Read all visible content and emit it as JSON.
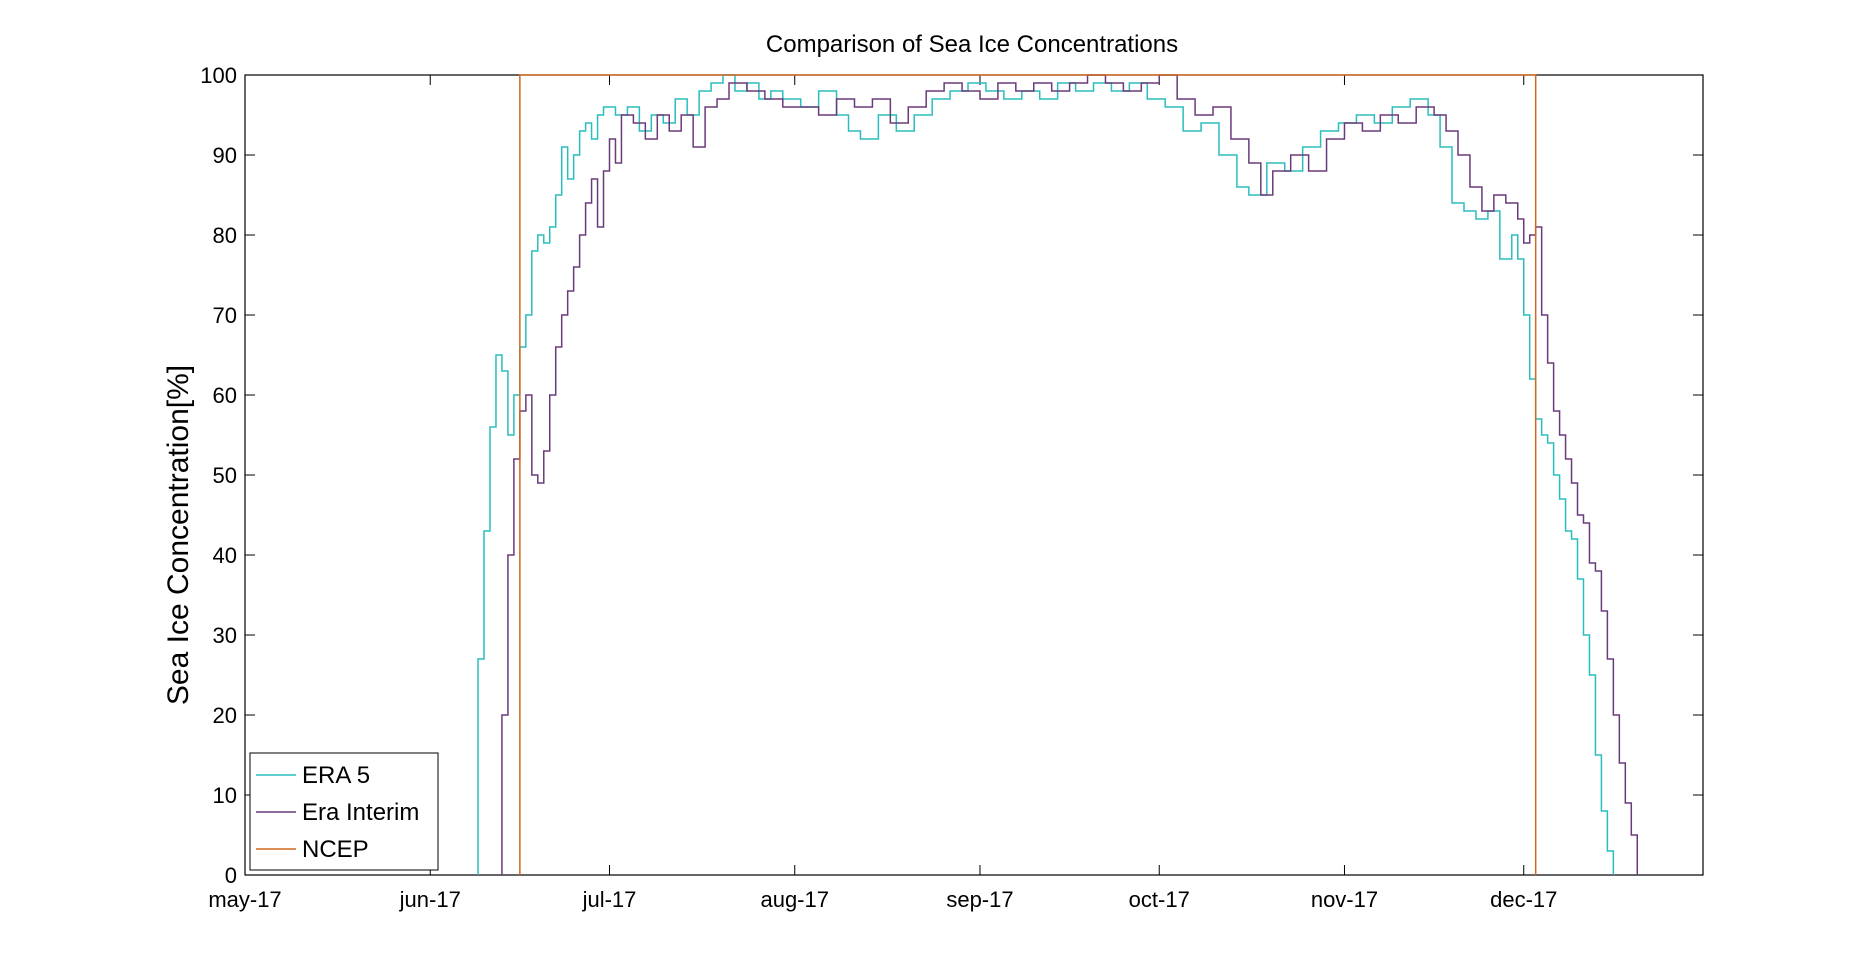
{
  "chart_data": {
    "type": "line",
    "title": "Comparison of Sea Ice Concentrations",
    "xlabel": "",
    "ylabel": "Sea Ice Concentration[%]",
    "xlim": [
      "2017-05-01",
      "2017-12-31"
    ],
    "ylim": [
      0,
      100
    ],
    "x_ticks": [
      {
        "label": "may-17",
        "date": "2017-05-01"
      },
      {
        "label": "jun-17",
        "date": "2017-06-01"
      },
      {
        "label": "jul-17",
        "date": "2017-07-01"
      },
      {
        "label": "aug-17",
        "date": "2017-08-01"
      },
      {
        "label": "sep-17",
        "date": "2017-09-01"
      },
      {
        "label": "oct-17",
        "date": "2017-10-01"
      },
      {
        "label": "nov-17",
        "date": "2017-11-01"
      },
      {
        "label": "dec-17",
        "date": "2017-12-01"
      }
    ],
    "y_ticks": [
      0,
      10,
      20,
      30,
      40,
      50,
      60,
      70,
      80,
      90,
      100
    ],
    "grid": false,
    "legend_position": "bottom-left",
    "series": [
      {
        "name": "ERA 5",
        "color": "#2bbdbd",
        "step": true,
        "points": [
          [
            "2017-06-09",
            0
          ],
          [
            "2017-06-09",
            27
          ],
          [
            "2017-06-10",
            43
          ],
          [
            "2017-06-11",
            56
          ],
          [
            "2017-06-12",
            65
          ],
          [
            "2017-06-13",
            63
          ],
          [
            "2017-06-14",
            55
          ],
          [
            "2017-06-15",
            60
          ],
          [
            "2017-06-16",
            66
          ],
          [
            "2017-06-17",
            70
          ],
          [
            "2017-06-18",
            78
          ],
          [
            "2017-06-19",
            80
          ],
          [
            "2017-06-20",
            79
          ],
          [
            "2017-06-21",
            81
          ],
          [
            "2017-06-22",
            85
          ],
          [
            "2017-06-23",
            91
          ],
          [
            "2017-06-24",
            87
          ],
          [
            "2017-06-25",
            90
          ],
          [
            "2017-06-26",
            93
          ],
          [
            "2017-06-27",
            94
          ],
          [
            "2017-06-28",
            92
          ],
          [
            "2017-06-29",
            95
          ],
          [
            "2017-06-30",
            96
          ],
          [
            "2017-07-02",
            95
          ],
          [
            "2017-07-04",
            96
          ],
          [
            "2017-07-06",
            93
          ],
          [
            "2017-07-08",
            95
          ],
          [
            "2017-07-10",
            94
          ],
          [
            "2017-07-12",
            97
          ],
          [
            "2017-07-14",
            95
          ],
          [
            "2017-07-16",
            98
          ],
          [
            "2017-07-18",
            99
          ],
          [
            "2017-07-20",
            100
          ],
          [
            "2017-07-22",
            98
          ],
          [
            "2017-07-24",
            99
          ],
          [
            "2017-07-26",
            97
          ],
          [
            "2017-07-28",
            98
          ],
          [
            "2017-07-30",
            97
          ],
          [
            "2017-08-02",
            96
          ],
          [
            "2017-08-05",
            98
          ],
          [
            "2017-08-08",
            95
          ],
          [
            "2017-08-10",
            93
          ],
          [
            "2017-08-12",
            92
          ],
          [
            "2017-08-15",
            95
          ],
          [
            "2017-08-18",
            93
          ],
          [
            "2017-08-21",
            95
          ],
          [
            "2017-08-24",
            97
          ],
          [
            "2017-08-27",
            98
          ],
          [
            "2017-08-30",
            99
          ],
          [
            "2017-09-02",
            98
          ],
          [
            "2017-09-05",
            97
          ],
          [
            "2017-09-08",
            98
          ],
          [
            "2017-09-11",
            97
          ],
          [
            "2017-09-14",
            99
          ],
          [
            "2017-09-17",
            98
          ],
          [
            "2017-09-20",
            99
          ],
          [
            "2017-09-23",
            98
          ],
          [
            "2017-09-26",
            99
          ],
          [
            "2017-09-29",
            97
          ],
          [
            "2017-10-02",
            96
          ],
          [
            "2017-10-05",
            93
          ],
          [
            "2017-10-08",
            94
          ],
          [
            "2017-10-11",
            90
          ],
          [
            "2017-10-14",
            86
          ],
          [
            "2017-10-16",
            85
          ],
          [
            "2017-10-19",
            89
          ],
          [
            "2017-10-22",
            88
          ],
          [
            "2017-10-25",
            91
          ],
          [
            "2017-10-28",
            93
          ],
          [
            "2017-10-31",
            94
          ],
          [
            "2017-11-03",
            95
          ],
          [
            "2017-11-06",
            94
          ],
          [
            "2017-11-09",
            96
          ],
          [
            "2017-11-12",
            97
          ],
          [
            "2017-11-15",
            95
          ],
          [
            "2017-11-17",
            91
          ],
          [
            "2017-11-19",
            84
          ],
          [
            "2017-11-21",
            83
          ],
          [
            "2017-11-23",
            82
          ],
          [
            "2017-11-25",
            83
          ],
          [
            "2017-11-27",
            77
          ],
          [
            "2017-11-29",
            80
          ],
          [
            "2017-11-30",
            77
          ],
          [
            "2017-12-01",
            70
          ],
          [
            "2017-12-02",
            62
          ],
          [
            "2017-12-03",
            57
          ],
          [
            "2017-12-04",
            55
          ],
          [
            "2017-12-05",
            54
          ],
          [
            "2017-12-06",
            50
          ],
          [
            "2017-12-07",
            47
          ],
          [
            "2017-12-08",
            43
          ],
          [
            "2017-12-09",
            42
          ],
          [
            "2017-12-10",
            37
          ],
          [
            "2017-12-11",
            30
          ],
          [
            "2017-12-12",
            25
          ],
          [
            "2017-12-13",
            15
          ],
          [
            "2017-12-14",
            8
          ],
          [
            "2017-12-15",
            3
          ],
          [
            "2017-12-16",
            0
          ]
        ]
      },
      {
        "name": "Era Interim",
        "color": "#6a3b7a",
        "step": true,
        "points": [
          [
            "2017-06-13",
            0
          ],
          [
            "2017-06-13",
            20
          ],
          [
            "2017-06-14",
            40
          ],
          [
            "2017-06-15",
            52
          ],
          [
            "2017-06-16",
            58
          ],
          [
            "2017-06-17",
            60
          ],
          [
            "2017-06-18",
            50
          ],
          [
            "2017-06-19",
            49
          ],
          [
            "2017-06-20",
            53
          ],
          [
            "2017-06-21",
            60
          ],
          [
            "2017-06-22",
            66
          ],
          [
            "2017-06-23",
            70
          ],
          [
            "2017-06-24",
            73
          ],
          [
            "2017-06-25",
            76
          ],
          [
            "2017-06-26",
            80
          ],
          [
            "2017-06-27",
            84
          ],
          [
            "2017-06-28",
            87
          ],
          [
            "2017-06-29",
            81
          ],
          [
            "2017-06-30",
            88
          ],
          [
            "2017-07-01",
            92
          ],
          [
            "2017-07-02",
            89
          ],
          [
            "2017-07-03",
            95
          ],
          [
            "2017-07-05",
            94
          ],
          [
            "2017-07-07",
            92
          ],
          [
            "2017-07-09",
            95
          ],
          [
            "2017-07-11",
            93
          ],
          [
            "2017-07-13",
            95
          ],
          [
            "2017-07-15",
            91
          ],
          [
            "2017-07-17",
            96
          ],
          [
            "2017-07-19",
            97
          ],
          [
            "2017-07-21",
            99
          ],
          [
            "2017-07-24",
            98
          ],
          [
            "2017-07-27",
            97
          ],
          [
            "2017-07-30",
            96
          ],
          [
            "2017-08-02",
            96
          ],
          [
            "2017-08-05",
            95
          ],
          [
            "2017-08-08",
            97
          ],
          [
            "2017-08-11",
            96
          ],
          [
            "2017-08-14",
            97
          ],
          [
            "2017-08-17",
            94
          ],
          [
            "2017-08-20",
            96
          ],
          [
            "2017-08-23",
            98
          ],
          [
            "2017-08-26",
            99
          ],
          [
            "2017-08-29",
            98
          ],
          [
            "2017-09-01",
            97
          ],
          [
            "2017-09-04",
            99
          ],
          [
            "2017-09-07",
            98
          ],
          [
            "2017-09-10",
            99
          ],
          [
            "2017-09-13",
            98
          ],
          [
            "2017-09-16",
            99
          ],
          [
            "2017-09-19",
            100
          ],
          [
            "2017-09-22",
            99
          ],
          [
            "2017-09-25",
            98
          ],
          [
            "2017-09-28",
            99
          ],
          [
            "2017-10-01",
            100
          ],
          [
            "2017-10-04",
            97
          ],
          [
            "2017-10-07",
            95
          ],
          [
            "2017-10-10",
            96
          ],
          [
            "2017-10-13",
            92
          ],
          [
            "2017-10-16",
            89
          ],
          [
            "2017-10-18",
            85
          ],
          [
            "2017-10-20",
            88
          ],
          [
            "2017-10-23",
            90
          ],
          [
            "2017-10-26",
            88
          ],
          [
            "2017-10-29",
            92
          ],
          [
            "2017-11-01",
            94
          ],
          [
            "2017-11-04",
            93
          ],
          [
            "2017-11-07",
            95
          ],
          [
            "2017-11-10",
            94
          ],
          [
            "2017-11-13",
            96
          ],
          [
            "2017-11-16",
            95
          ],
          [
            "2017-11-18",
            93
          ],
          [
            "2017-11-20",
            90
          ],
          [
            "2017-11-22",
            86
          ],
          [
            "2017-11-24",
            83
          ],
          [
            "2017-11-26",
            85
          ],
          [
            "2017-11-28",
            84
          ],
          [
            "2017-11-30",
            82
          ],
          [
            "2017-12-01",
            79
          ],
          [
            "2017-12-02",
            80
          ],
          [
            "2017-12-03",
            81
          ],
          [
            "2017-12-04",
            70
          ],
          [
            "2017-12-05",
            64
          ],
          [
            "2017-12-06",
            58
          ],
          [
            "2017-12-07",
            55
          ],
          [
            "2017-12-08",
            52
          ],
          [
            "2017-12-09",
            49
          ],
          [
            "2017-12-10",
            45
          ],
          [
            "2017-12-11",
            44
          ],
          [
            "2017-12-12",
            39
          ],
          [
            "2017-12-13",
            38
          ],
          [
            "2017-12-14",
            33
          ],
          [
            "2017-12-15",
            27
          ],
          [
            "2017-12-16",
            20
          ],
          [
            "2017-12-17",
            14
          ],
          [
            "2017-12-18",
            9
          ],
          [
            "2017-12-19",
            5
          ],
          [
            "2017-12-20",
            0
          ]
        ]
      },
      {
        "name": "NCEP",
        "color": "#d2691e",
        "step": true,
        "points": [
          [
            "2017-06-16",
            0
          ],
          [
            "2017-06-16",
            100
          ],
          [
            "2017-12-03",
            100
          ],
          [
            "2017-12-03",
            0
          ]
        ]
      }
    ]
  }
}
